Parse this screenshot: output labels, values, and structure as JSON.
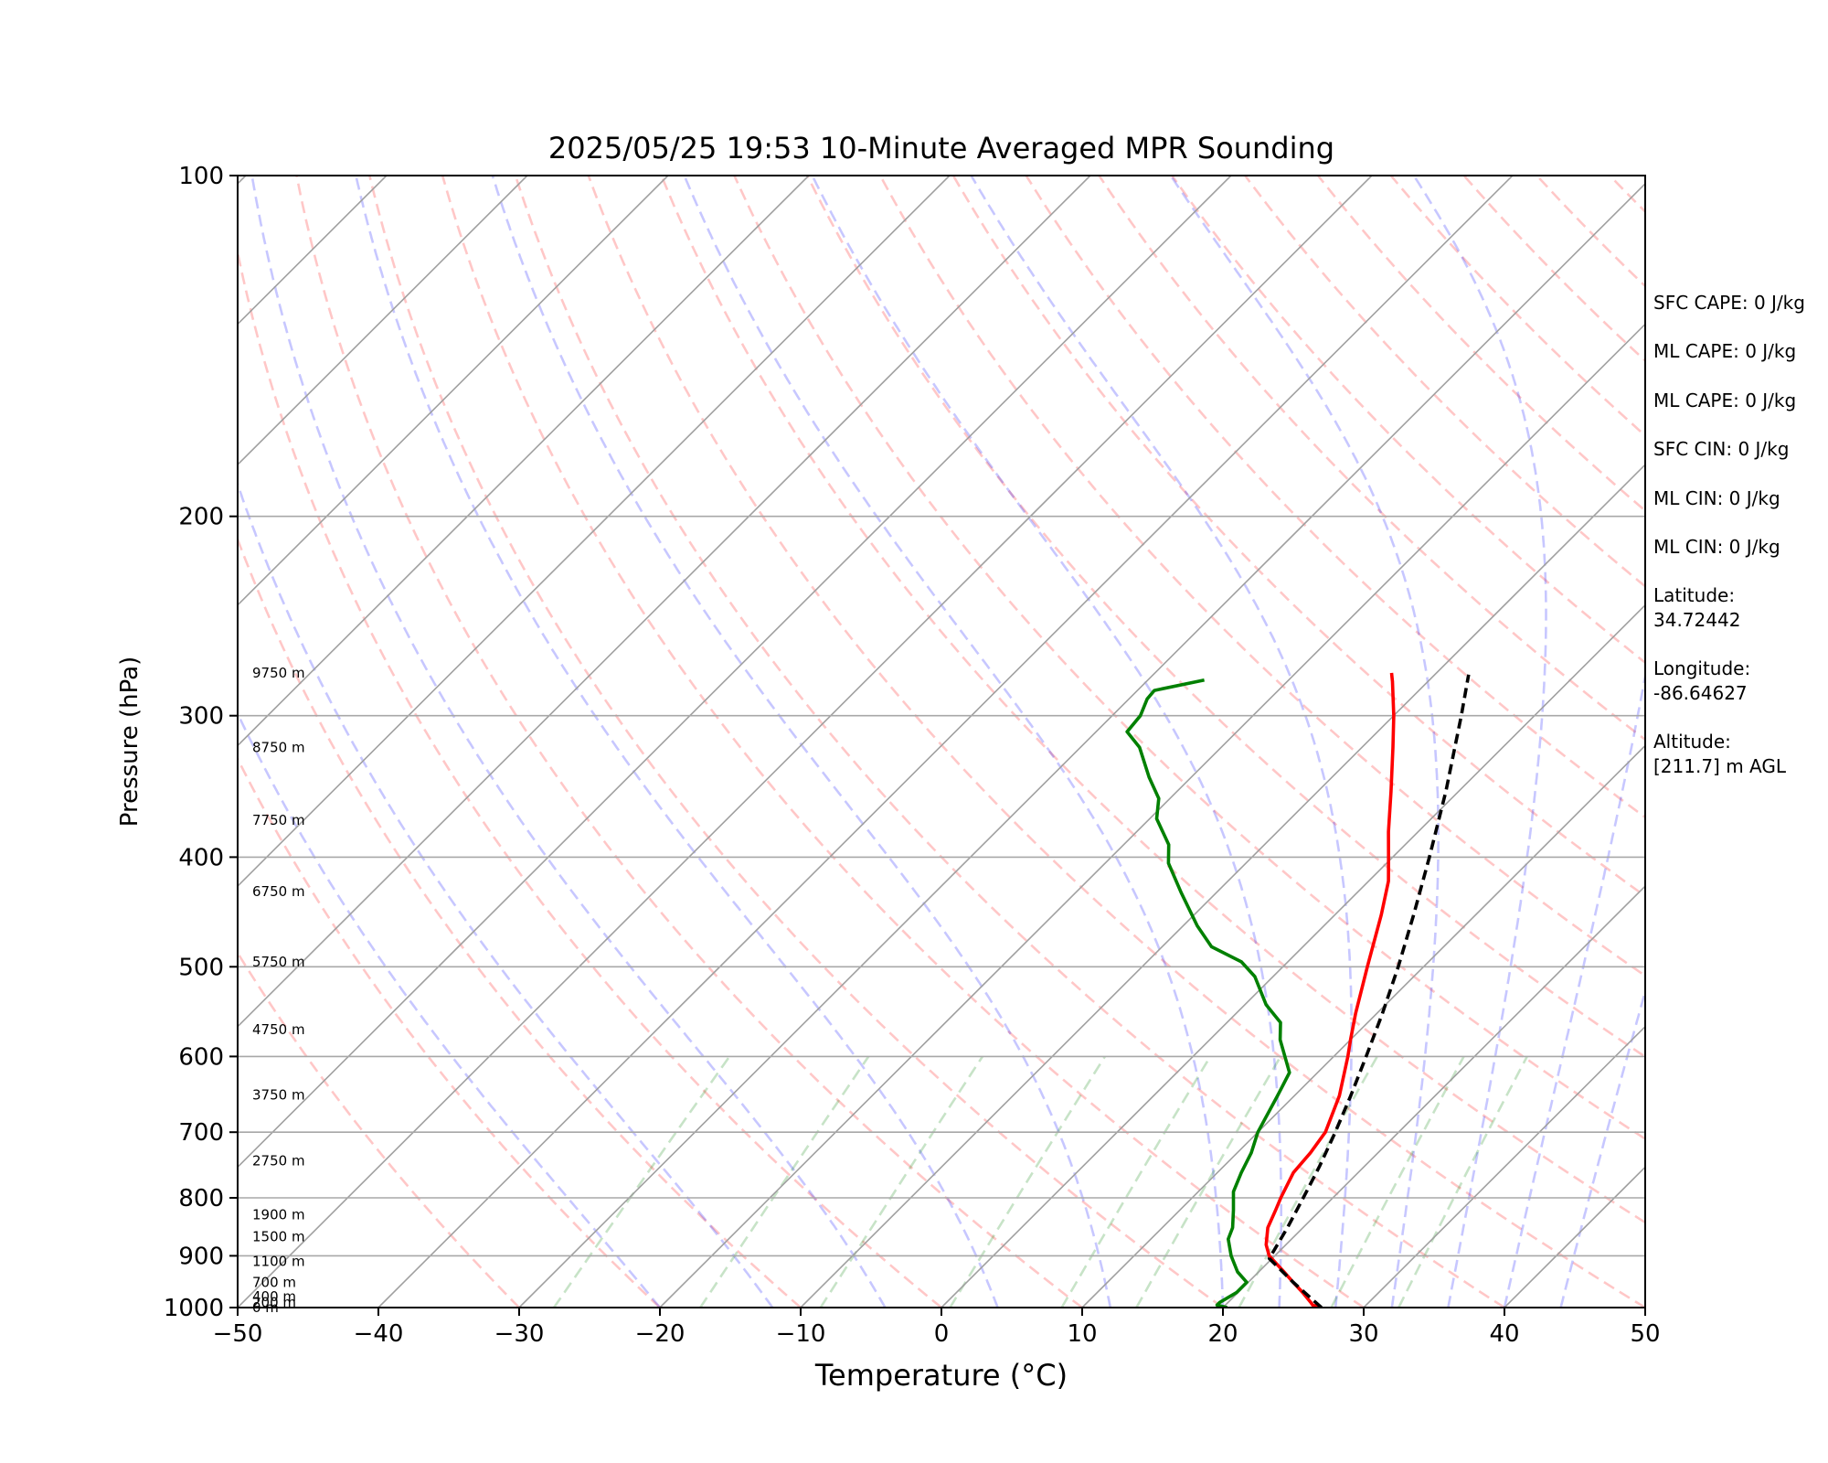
{
  "chart_data": {
    "type": "line",
    "title": "2025/05/25 19:53 10-Minute Averaged MPR Sounding",
    "xlabel": "Temperature (°C)",
    "ylabel": "Pressure (hPa)",
    "xlim": [
      -50,
      50
    ],
    "ylim": [
      1000,
      100
    ],
    "y_scale": "log",
    "skew_t": true,
    "x_ticks": [
      "−50",
      "−40",
      "−30",
      "−20",
      "−10",
      "0",
      "10",
      "20",
      "30",
      "40",
      "50"
    ],
    "y_ticks": [
      {
        "p": 100,
        "label": "100"
      },
      {
        "p": 200,
        "label": "200"
      },
      {
        "p": 300,
        "label": "300"
      },
      {
        "p": 400,
        "label": "400"
      },
      {
        "p": 500,
        "label": "500"
      },
      {
        "p": 600,
        "label": "600"
      },
      {
        "p": 700,
        "label": "700"
      },
      {
        "p": 800,
        "label": "800"
      },
      {
        "p": 900,
        "label": "900"
      },
      {
        "p": 1000,
        "label": "1000"
      }
    ],
    "grid": true,
    "height_labels": [
      {
        "p": 1000,
        "label": "0 m"
      },
      {
        "p": 990,
        "label": "200 m"
      },
      {
        "p": 978,
        "label": "400 m"
      },
      {
        "p": 950,
        "label": "700 m"
      },
      {
        "p": 910,
        "label": "1100 m"
      },
      {
        "p": 866,
        "label": "1500 m"
      },
      {
        "p": 828,
        "label": "1900 m"
      },
      {
        "p": 742,
        "label": "2750 m"
      },
      {
        "p": 649,
        "label": "3750 m"
      },
      {
        "p": 568,
        "label": "4750 m"
      },
      {
        "p": 495,
        "label": "5750 m"
      },
      {
        "p": 429,
        "label": "6750 m"
      },
      {
        "p": 371,
        "label": "7750 m"
      },
      {
        "p": 320,
        "label": "8750 m"
      },
      {
        "p": 275,
        "label": "9750 m"
      }
    ],
    "series": [
      {
        "color": "#ff0000",
        "points": [
          {
            "p": 1000,
            "t": 27.0
          },
          {
            "p": 995,
            "t": 26.2
          },
          {
            "p": 990,
            "t": 25.9
          },
          {
            "p": 970,
            "t": 24.6
          },
          {
            "p": 950,
            "t": 23.2
          },
          {
            "p": 930,
            "t": 21.8
          },
          {
            "p": 900,
            "t": 19.6
          },
          {
            "p": 880,
            "t": 18.6
          },
          {
            "p": 850,
            "t": 17.5
          },
          {
            "p": 820,
            "t": 16.8
          },
          {
            "p": 800,
            "t": 16.3
          },
          {
            "p": 760,
            "t": 15.4
          },
          {
            "p": 730,
            "t": 15.2
          },
          {
            "p": 700,
            "t": 14.8
          },
          {
            "p": 650,
            "t": 13.2
          },
          {
            "p": 600,
            "t": 11.0
          },
          {
            "p": 580,
            "t": 10.0
          },
          {
            "p": 550,
            "t": 8.5
          },
          {
            "p": 500,
            "t": 6.0
          },
          {
            "p": 450,
            "t": 3.3
          },
          {
            "p": 420,
            "t": 1.4
          },
          {
            "p": 400,
            "t": -0.3
          },
          {
            "p": 380,
            "t": -2.1
          },
          {
            "p": 350,
            "t": -4.8
          },
          {
            "p": 320,
            "t": -7.8
          },
          {
            "p": 300,
            "t": -10.0
          },
          {
            "p": 280,
            "t": -12.5
          },
          {
            "p": 275,
            "t": -13.2
          }
        ]
      },
      {
        "color": "#008000",
        "points": [
          {
            "p": 1000,
            "t": 20.3
          },
          {
            "p": 995,
            "t": 19.4
          },
          {
            "p": 990,
            "t": 19.4
          },
          {
            "p": 970,
            "t": 19.9
          },
          {
            "p": 950,
            "t": 19.9
          },
          {
            "p": 930,
            "t": 18.5
          },
          {
            "p": 900,
            "t": 16.9
          },
          {
            "p": 870,
            "t": 15.5
          },
          {
            "p": 850,
            "t": 15.0
          },
          {
            "p": 820,
            "t": 13.8
          },
          {
            "p": 790,
            "t": 12.5
          },
          {
            "p": 760,
            "t": 11.7
          },
          {
            "p": 730,
            "t": 11.0
          },
          {
            "p": 700,
            "t": 10.0
          },
          {
            "p": 650,
            "t": 8.8
          },
          {
            "p": 620,
            "t": 8.0
          },
          {
            "p": 580,
            "t": 5.0
          },
          {
            "p": 560,
            "t": 3.8
          },
          {
            "p": 540,
            "t": 1.5
          },
          {
            "p": 510,
            "t": -1.3
          },
          {
            "p": 495,
            "t": -3.3
          },
          {
            "p": 480,
            "t": -6.5
          },
          {
            "p": 460,
            "t": -9.0
          },
          {
            "p": 430,
            "t": -12.5
          },
          {
            "p": 405,
            "t": -15.5
          },
          {
            "p": 390,
            "t": -16.8
          },
          {
            "p": 370,
            "t": -19.5
          },
          {
            "p": 355,
            "t": -20.8
          },
          {
            "p": 340,
            "t": -23.0
          },
          {
            "p": 320,
            "t": -25.8
          },
          {
            "p": 310,
            "t": -27.8
          },
          {
            "p": 300,
            "t": -28.0
          },
          {
            "p": 290,
            "t": -28.7
          },
          {
            "p": 285,
            "t": -28.8
          },
          {
            "p": 279,
            "t": -26.0
          }
        ]
      },
      {
        "color": "#000000",
        "dashed": true,
        "points": [
          {
            "p": 1000,
            "t": 27.0
          },
          {
            "p": 950,
            "t": 23.2
          },
          {
            "p": 905,
            "t": 19.8
          },
          {
            "p": 850,
            "t": 18.9
          },
          {
            "p": 800,
            "t": 17.9
          },
          {
            "p": 750,
            "t": 16.8
          },
          {
            "p": 700,
            "t": 15.5
          },
          {
            "p": 650,
            "t": 14.0
          },
          {
            "p": 600,
            "t": 12.3
          },
          {
            "p": 550,
            "t": 10.4
          },
          {
            "p": 500,
            "t": 8.2
          },
          {
            "p": 450,
            "t": 5.6
          },
          {
            "p": 400,
            "t": 2.6
          },
          {
            "p": 350,
            "t": -0.9
          },
          {
            "p": 300,
            "t": -5.2
          },
          {
            "p": 276,
            "t": -7.6
          }
        ]
      }
    ]
  },
  "sidebar": {
    "stats": [
      "SFC CAPE: 0 J/kg",
      "ML CAPE: 0 J/kg",
      "ML CAPE: 0 J/kg",
      "SFC CIN: 0 J/kg",
      "ML CIN: 0 J/kg",
      "ML CIN: 0 J/kg"
    ],
    "latitude_label": "Latitude:",
    "latitude_value": "34.72442",
    "longitude_label": "Longitude:",
    "longitude_value": "-86.64627",
    "altitude_label": "Altitude:",
    "altitude_value": "[211.7] m AGL"
  }
}
